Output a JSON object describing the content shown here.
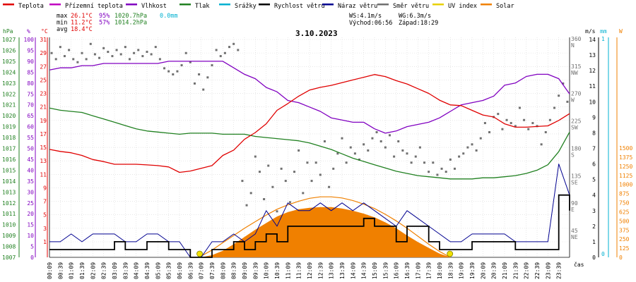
{
  "chart_data": {
    "type": "line",
    "title": "3.10.2023",
    "xlabel": "čas",
    "x_ticks": [
      "00:09",
      "00:39",
      "01:09",
      "01:39",
      "02:09",
      "02:39",
      "03:09",
      "03:39",
      "04:09",
      "04:39",
      "05:09",
      "05:39",
      "06:09",
      "06:39",
      "07:09",
      "07:39",
      "08:09",
      "08:39",
      "09:09",
      "09:39",
      "10:09",
      "10:39",
      "11:09",
      "11:39",
      "12:09",
      "12:39",
      "13:09",
      "13:39",
      "14:09",
      "14:39",
      "15:09",
      "15:39",
      "16:09",
      "16:39",
      "17:09",
      "17:39",
      "18:09",
      "18:39",
      "19:09",
      "19:39",
      "20:09",
      "20:39",
      "21:09",
      "21:39",
      "22:09",
      "22:39",
      "23:09",
      "23:39"
    ],
    "legend": [
      {
        "name": "Teplota",
        "color": "#e00000"
      },
      {
        "name": "Přízemní teplota",
        "color": "#c000c0"
      },
      {
        "name": "Vlhkost",
        "color": "#8000c0"
      },
      {
        "name": "Tlak",
        "color": "#208020"
      },
      {
        "name": "Srážky",
        "color": "#00b0d0"
      },
      {
        "name": "Rychlost větru",
        "color": "#000000"
      },
      {
        "name": "Náraz větru",
        "color": "#000090"
      },
      {
        "name": "Směr větru",
        "color": "#707070"
      },
      {
        "name": "UV index",
        "color": "#e8d000"
      },
      {
        "name": "Solar",
        "color": "#f08000"
      }
    ],
    "stats": {
      "max_label": "max",
      "max_temp": "26.1°C",
      "max_hum": "95%",
      "max_press": "1020.7hPa",
      "rain": "0.0mm",
      "min_label": "min",
      "min_temp": "11.2°C",
      "min_hum": "57%",
      "min_press": "1014.2hPa",
      "avg_label": "avg",
      "avg_temp": "18.4°C",
      "ws": "WS:4.1m/s",
      "wg": "WG:6.3m/s",
      "sunrise": "Východ:06:56",
      "sunset": "Západ:18:29"
    },
    "axes": {
      "hpa": {
        "label": "hPa",
        "ticks": [
          1027,
          1026,
          1025,
          1024,
          1023,
          1022,
          1021,
          1020,
          1019,
          1018,
          1017,
          1016,
          1015,
          1014,
          1013,
          1012,
          1011,
          1010,
          1009,
          1008,
          1007
        ],
        "color": "#208020"
      },
      "pct": {
        "label": "%",
        "ticks": [
          100,
          95,
          90,
          85,
          80,
          75,
          70,
          65,
          60,
          55,
          50,
          45,
          40,
          35,
          30,
          25,
          20,
          15,
          10,
          5,
          0
        ],
        "color": "#8000c0"
      },
      "degc": {
        "label": "°C",
        "ticks": [
          31,
          29,
          27,
          25,
          23,
          21,
          19,
          17,
          15,
          13,
          11,
          9,
          7,
          5,
          3,
          1
        ],
        "color": "#e00000"
      },
      "dir": {
        "ticks": [
          "360 N",
          "315 NW",
          "270 W",
          "225 SW",
          "180 S",
          "135 SE",
          "90 E",
          "45 NE"
        ],
        "color": "#707070"
      },
      "ms": {
        "label": "m/s",
        "ticks": [
          14,
          13,
          12,
          11,
          10,
          9,
          8,
          7,
          6,
          5,
          4,
          3,
          2,
          1,
          0
        ],
        "color": "#000000"
      },
      "mm": {
        "label": "mm",
        "ticks": [
          1,
          0
        ],
        "color": "#00b0d0"
      },
      "w": {
        "label": "W",
        "ticks": [
          1500,
          1375,
          1250,
          1125,
          1000,
          875,
          750,
          625,
          500,
          375,
          250,
          125,
          0
        ],
        "color": "#f08000"
      }
    },
    "series": [
      {
        "name": "Teplota",
        "unit": "°C",
        "x": [
          0,
          0.5,
          1,
          1.5,
          2,
          2.5,
          3,
          3.5,
          4,
          4.5,
          5,
          5.5,
          6,
          6.5,
          7,
          7.5,
          8,
          8.5,
          9,
          9.5,
          10,
          10.5,
          11,
          11.5,
          12,
          12.5,
          13,
          13.5,
          14,
          14.5,
          15,
          15.5,
          16,
          16.5,
          17,
          17.5,
          18,
          18.5,
          19,
          19.5,
          20,
          20.5,
          21,
          21.5,
          22,
          22.5,
          23,
          23.5,
          24
        ],
        "values": [
          14.7,
          14.4,
          14.2,
          13.8,
          13.2,
          12.9,
          12.5,
          12.5,
          12.5,
          12.4,
          12.3,
          12.1,
          11.3,
          11.5,
          11.9,
          12.3,
          13.8,
          14.6,
          16.2,
          17.2,
          18.5,
          20.5,
          21.5,
          22.6,
          23.5,
          23.9,
          24.2,
          24.6,
          25.0,
          25.4,
          25.8,
          25.5,
          24.9,
          24.4,
          23.7,
          23.0,
          22.0,
          21.3,
          21.2,
          20.5,
          19.8,
          19.5,
          18.5,
          18.0,
          18.0,
          18.1,
          18.2,
          19.0,
          20.0
        ]
      },
      {
        "name": "Vlhkost",
        "unit": "%",
        "x": [
          0,
          0.5,
          1,
          1.5,
          2,
          2.5,
          3,
          3.5,
          4,
          4.5,
          5,
          5.5,
          6,
          6.5,
          7,
          7.5,
          8,
          8.5,
          9,
          9.5,
          10,
          10.5,
          11,
          11.5,
          12,
          12.5,
          13,
          13.5,
          14,
          14.5,
          15,
          15.5,
          16,
          16.5,
          17,
          17.5,
          18,
          18.5,
          19,
          19.5,
          20,
          20.5,
          21,
          21.5,
          22,
          22.5,
          23,
          23.5,
          24
        ],
        "values": [
          86,
          87,
          87,
          88,
          88,
          89,
          89,
          89,
          89,
          89,
          89,
          90,
          90,
          90,
          90,
          90,
          90,
          87,
          84,
          82,
          78,
          76,
          72,
          71,
          69,
          67,
          64,
          63,
          62,
          62,
          59,
          57,
          58,
          60,
          61,
          62,
          64,
          67,
          70,
          71,
          72,
          74,
          79,
          80,
          83,
          84,
          84,
          82,
          75
        ]
      },
      {
        "name": "Tlak",
        "unit": "hPa",
        "x": [
          0,
          0.5,
          1,
          1.5,
          2,
          2.5,
          3,
          3.5,
          4,
          4.5,
          5,
          5.5,
          6,
          6.5,
          7,
          7.5,
          8,
          8.5,
          9,
          9.5,
          10,
          10.5,
          11,
          11.5,
          12,
          12.5,
          13,
          13.5,
          14,
          14.5,
          15,
          15.5,
          16,
          16.5,
          17,
          17.5,
          18,
          18.5,
          19,
          19.5,
          20,
          20.5,
          21,
          21.5,
          22,
          22.5,
          23,
          23.5,
          24
        ],
        "values": [
          1020.7,
          1020.5,
          1020.4,
          1020.3,
          1020.0,
          1019.7,
          1019.4,
          1019.1,
          1018.8,
          1018.6,
          1018.5,
          1018.4,
          1018.3,
          1018.4,
          1018.4,
          1018.4,
          1018.3,
          1018.3,
          1018.3,
          1018.1,
          1018.0,
          1017.9,
          1017.8,
          1017.7,
          1017.5,
          1017.2,
          1016.9,
          1016.5,
          1016.1,
          1015.8,
          1015.5,
          1015.2,
          1014.9,
          1014.7,
          1014.5,
          1014.4,
          1014.3,
          1014.2,
          1014.2,
          1014.2,
          1014.3,
          1014.3,
          1014.4,
          1014.5,
          1014.7,
          1015.0,
          1015.5,
          1016.7,
          1018.5
        ]
      },
      {
        "name": "Rychlost větru",
        "unit": "m/s",
        "x": [
          0,
          0.5,
          1,
          1.5,
          2,
          2.5,
          3,
          3.5,
          4,
          4.5,
          5,
          5.5,
          6,
          6.5,
          7,
          7.5,
          8,
          8.5,
          9,
          9.5,
          10,
          10.5,
          11,
          11.5,
          12,
          12.5,
          13,
          13.5,
          14,
          14.5,
          15,
          15.5,
          16,
          16.5,
          17,
          17.5,
          18,
          18.5,
          19,
          19.5,
          20,
          20.5,
          21,
          21.5,
          22,
          22.5,
          23,
          23.5,
          24
        ],
        "values": [
          0.5,
          0.5,
          0.5,
          0.5,
          0.5,
          0.5,
          1,
          0.5,
          0.5,
          1,
          1,
          0.5,
          0.5,
          0,
          0,
          0.5,
          0.5,
          1,
          0.5,
          1,
          1.5,
          1,
          2,
          2,
          2,
          2,
          2,
          2,
          2,
          2.5,
          2,
          2,
          1,
          2,
          2,
          1,
          0.5,
          0.5,
          0.5,
          1,
          1,
          1,
          1,
          0.5,
          0.5,
          0.5,
          0.5,
          4,
          3
        ]
      },
      {
        "name": "Náraz větru",
        "unit": "m/s",
        "x": [
          0,
          0.5,
          1,
          1.5,
          2,
          2.5,
          3,
          3.5,
          4,
          4.5,
          5,
          5.5,
          6,
          6.5,
          7,
          7.5,
          8,
          8.5,
          9,
          9.5,
          10,
          10.5,
          11,
          11.5,
          12,
          12.5,
          13,
          13.5,
          14,
          14.5,
          15,
          15.5,
          16,
          16.5,
          17,
          17.5,
          18,
          18.5,
          19,
          19.5,
          20,
          20.5,
          21,
          21.5,
          22,
          22.5,
          23,
          23.5,
          24
        ],
        "values": [
          1,
          1,
          1.5,
          1,
          1.5,
          1.5,
          1.5,
          1,
          1,
          1.5,
          1.5,
          1,
          1,
          0,
          0,
          1,
          1,
          1.5,
          1,
          1.5,
          3,
          2,
          3.5,
          3,
          3,
          3.5,
          3,
          3.5,
          3,
          3.5,
          3,
          2.5,
          2,
          3,
          2.5,
          2,
          1.5,
          1,
          1,
          1.5,
          1.5,
          1.5,
          1.5,
          1,
          1,
          1,
          1,
          6,
          4
        ]
      },
      {
        "name": "Solar",
        "unit": "W",
        "x": [
          7,
          7.5,
          8,
          8.5,
          9,
          9.5,
          10,
          10.5,
          11,
          11.5,
          12,
          12.5,
          13,
          13.5,
          14,
          14.5,
          15,
          15.5,
          16,
          16.5,
          17,
          17.5,
          18,
          18.5
        ],
        "values": [
          0,
          30,
          90,
          180,
          280,
          380,
          470,
          560,
          620,
          660,
          680,
          690,
          690,
          670,
          640,
          600,
          550,
          480,
          400,
          300,
          210,
          130,
          50,
          0
        ]
      },
      {
        "name": "Solar max",
        "unit": "W",
        "x": [
          6.9,
          7.5,
          8,
          8.5,
          9,
          9.5,
          10,
          10.5,
          11,
          11.5,
          12,
          12.5,
          13,
          13.5,
          14,
          14.5,
          15,
          15.5,
          16,
          16.5,
          17,
          17.5,
          18,
          18.5
        ],
        "values": [
          0,
          100,
          200,
          300,
          400,
          490,
          580,
          660,
          720,
          770,
          810,
          830,
          830,
          815,
          780,
          730,
          670,
          590,
          500,
          400,
          290,
          180,
          80,
          0
        ]
      }
    ],
    "wind_direction": {
      "x": [
        0.1,
        0.3,
        0.5,
        0.7,
        0.9,
        1.1,
        1.3,
        1.5,
        1.7,
        1.9,
        2.1,
        2.3,
        2.5,
        2.7,
        2.9,
        3.1,
        3.3,
        3.5,
        3.7,
        3.9,
        4.1,
        4.3,
        4.5,
        4.7,
        4.9,
        5.1,
        5.3,
        5.5,
        5.7,
        5.9,
        6.1,
        6.3,
        6.5,
        6.7,
        6.9,
        7.1,
        7.3,
        7.5,
        7.7,
        7.9,
        8.1,
        8.3,
        8.5,
        8.7,
        8.9,
        9.1,
        9.3,
        9.5,
        9.7,
        9.9,
        10.1,
        10.3,
        10.5,
        10.7,
        10.9,
        11.1,
        11.3,
        11.5,
        11.7,
        11.9,
        12.1,
        12.3,
        12.5,
        12.7,
        12.9,
        13.1,
        13.3,
        13.5,
        13.7,
        13.9,
        14.1,
        14.3,
        14.5,
        14.7,
        14.9,
        15.1,
        15.3,
        15.5,
        15.7,
        15.9,
        16.1,
        16.3,
        16.5,
        16.7,
        16.9,
        17.1,
        17.3,
        17.5,
        17.7,
        17.9,
        18.1,
        18.3,
        18.5,
        18.7,
        18.9,
        19.1,
        19.3,
        19.5,
        19.7,
        19.9,
        20.1,
        20.3,
        20.5,
        20.7,
        20.9,
        21.1,
        21.3,
        21.5,
        21.7,
        21.9,
        22.1,
        22.3,
        22.5,
        22.7,
        22.9,
        23.1,
        23.3,
        23.5,
        23.7,
        23.9
      ],
      "values": [
        340,
        330,
        350,
        335,
        345,
        330,
        325,
        340,
        330,
        355,
        338,
        332,
        348,
        342,
        335,
        345,
        338,
        350,
        330,
        340,
        345,
        335,
        342,
        338,
        350,
        330,
        315,
        310,
        305,
        310,
        320,
        340,
        325,
        290,
        305,
        280,
        300,
        320,
        345,
        335,
        340,
        350,
        355,
        345,
        130,
        90,
        110,
        170,
        145,
        100,
        155,
        120,
        80,
        150,
        130,
        95,
        145,
        180,
        110,
        160,
        130,
        160,
        140,
        195,
        120,
        150,
        175,
        200,
        160,
        185,
        175,
        165,
        190,
        180,
        200,
        210,
        195,
        185,
        205,
        170,
        195,
        180,
        175,
        160,
        170,
        185,
        160,
        145,
        160,
        140,
        150,
        145,
        165,
        150,
        170,
        175,
        185,
        190,
        180,
        200,
        225,
        210,
        235,
        240,
        215,
        230,
        225,
        220,
        250,
        230,
        215,
        225,
        220,
        190,
        210,
        230,
        250,
        270,
        290,
        260
      ]
    }
  }
}
